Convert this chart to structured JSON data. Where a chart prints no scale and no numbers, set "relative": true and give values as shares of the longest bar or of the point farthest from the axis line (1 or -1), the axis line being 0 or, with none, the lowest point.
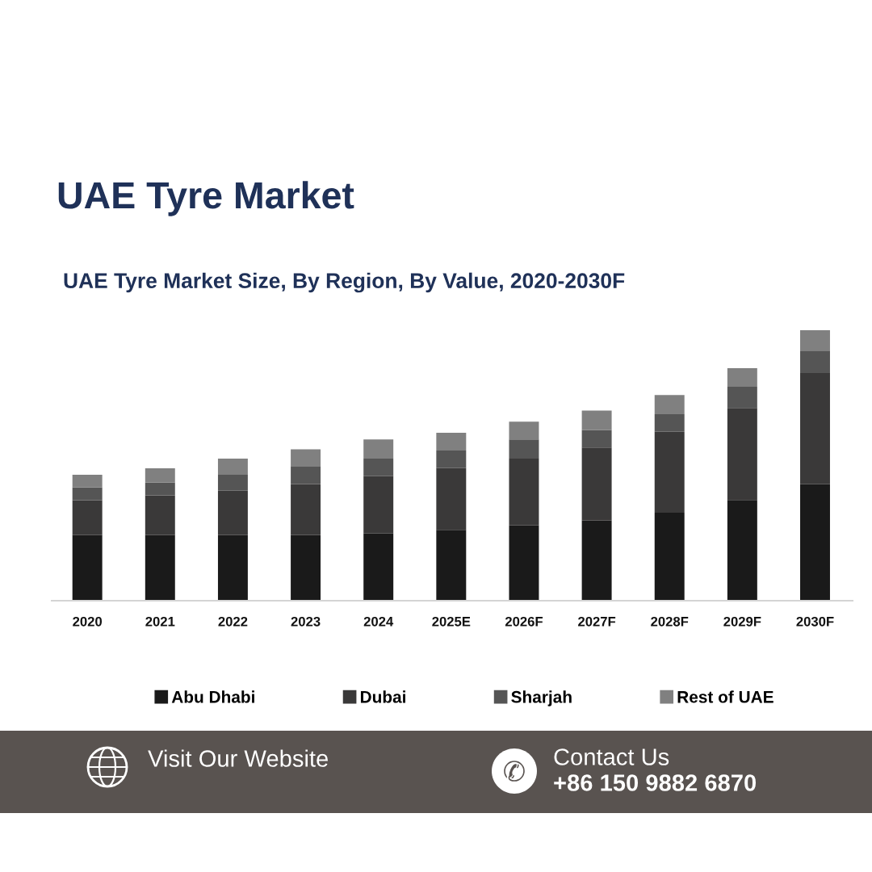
{
  "chart_data": {
    "type": "bar",
    "title": "UAE Tyre Market",
    "subtitle": "UAE Tyre Market Size, By Region, By Value, 2020-2030F",
    "categories": [
      "2020",
      "2021",
      "2022",
      "2023",
      "2024",
      "2025E",
      "2026F",
      "2027F",
      "2028F",
      "2029F",
      "2030F"
    ],
    "stacked": true,
    "relative": true,
    "tick_labels": "x",
    "legend": "bottom",
    "series": [
      {
        "name": "Abu Dhabi",
        "color": "#1a1a1a",
        "values": [
          0.242,
          0.242,
          0.242,
          0.242,
          0.248,
          0.262,
          0.278,
          0.296,
          0.325,
          0.372,
          0.43
        ]
      },
      {
        "name": "Dubai",
        "color": "#3a3939",
        "values": [
          0.129,
          0.147,
          0.164,
          0.189,
          0.212,
          0.228,
          0.247,
          0.27,
          0.299,
          0.34,
          0.411
        ]
      },
      {
        "name": "Sharjah",
        "color": "#555555",
        "values": [
          0.047,
          0.047,
          0.059,
          0.064,
          0.065,
          0.065,
          0.071,
          0.065,
          0.065,
          0.078,
          0.083
        ]
      },
      {
        "name": "Rest of UAE",
        "color": "#808080",
        "values": [
          0.047,
          0.053,
          0.06,
          0.064,
          0.071,
          0.065,
          0.065,
          0.071,
          0.071,
          0.069,
          0.076
        ]
      }
    ],
    "annotations": [
      "Visit Our Website",
      "Contact Us",
      "+86 150 9882 6870"
    ]
  }
}
